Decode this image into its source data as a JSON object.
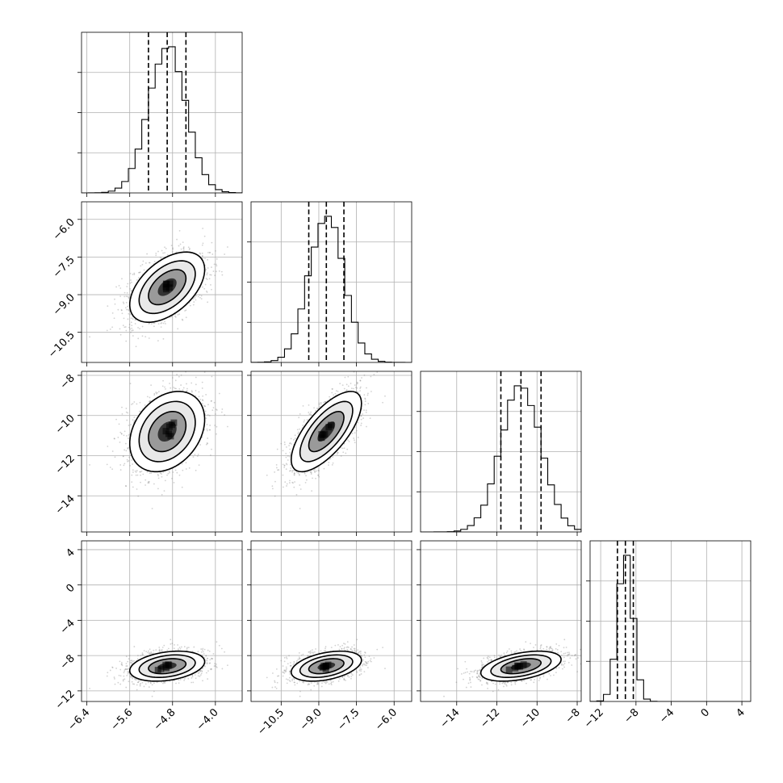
{
  "chart_data": {
    "type": "scatter",
    "title": "",
    "layout": "corner-plot",
    "grid": true,
    "dimensions": 4,
    "parameters": [
      {
        "name": "",
        "range": [
          -6.5,
          -3.5
        ],
        "ticks": [
          -6.4,
          -5.6,
          -4.8,
          -4.0
        ],
        "tick_labels": [
          "−6.4",
          "−5.6",
          "−4.8",
          "−4.0"
        ],
        "mean": -4.9,
        "std": 0.35,
        "quantiles": [
          -5.25,
          -4.9,
          -4.55
        ]
      },
      {
        "name": "",
        "range": [
          -11.7,
          -5.3
        ],
        "ticks": [
          -10.5,
          -9.0,
          -7.5,
          -6.0
        ],
        "tick_labels": [
          "−10.5",
          "−9.0",
          "−7.5",
          "−6.0"
        ],
        "mean": -8.7,
        "std": 0.7,
        "quantiles": [
          -9.4,
          -8.7,
          -8.0
        ]
      },
      {
        "name": "",
        "range": [
          -15.8,
          -7.8
        ],
        "ticks": [
          -14,
          -12,
          -10,
          -8
        ],
        "tick_labels": [
          "−14",
          "−12",
          "−10",
          "−8"
        ],
        "mean": -10.8,
        "std": 1.0,
        "quantiles": [
          -11.8,
          -10.8,
          -9.8
        ]
      },
      {
        "name": "",
        "range": [
          -13.2,
          5.0
        ],
        "ticks": [
          -12,
          -8,
          -4,
          0,
          4
        ],
        "tick_labels": [
          "−12",
          "−8",
          "−4",
          "0",
          "4"
        ],
        "mean": -9.2,
        "std": 0.85,
        "quantiles": [
          -10.1,
          -9.2,
          -8.3
        ]
      }
    ],
    "correlations": [
      [
        1.0,
        0.5,
        0.3,
        0.3
      ],
      [
        0.5,
        1.0,
        0.7,
        0.4
      ],
      [
        0.3,
        0.7,
        1.0,
        0.45
      ],
      [
        0.3,
        0.4,
        0.45,
        1.0
      ]
    ],
    "contour_levels_sigma": [
      0.5,
      1.0,
      1.5,
      2.0
    ],
    "colors": {
      "points": "#7f7f7f",
      "density_dark": "#000000",
      "line": "#000000",
      "grid": "#b0b0b0"
    }
  }
}
